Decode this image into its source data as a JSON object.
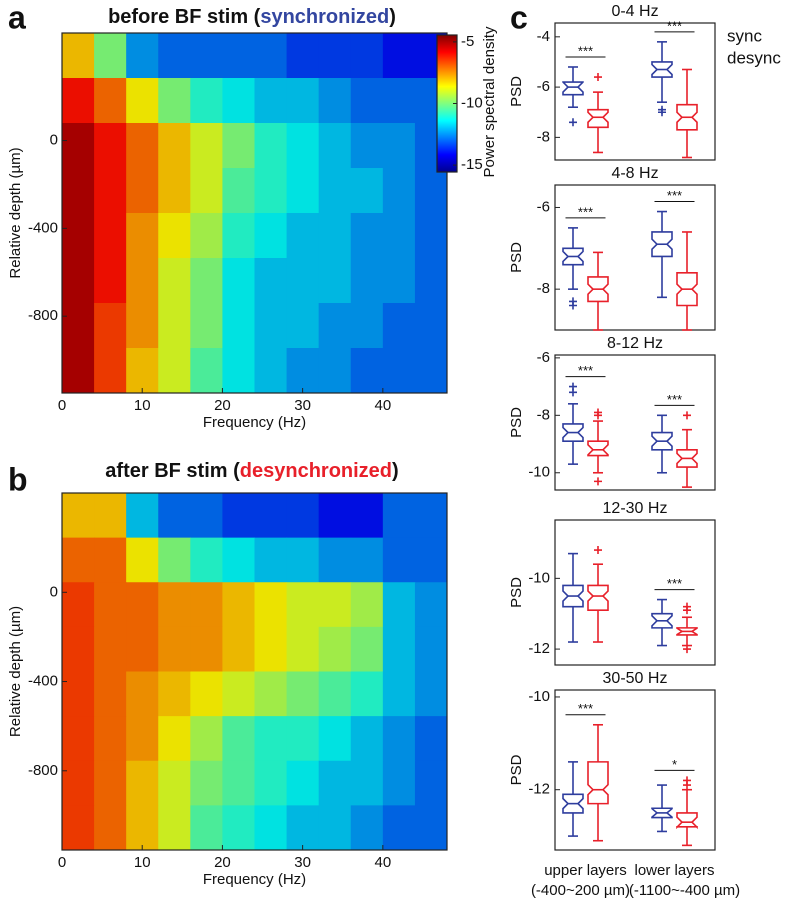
{
  "chart_data": [
    {
      "type": "heatmap",
      "label": "a",
      "title_prefix": "before BF stim (",
      "title_highlight": "synchronized",
      "title_suffix": ")",
      "highlight_color": "#3346a0",
      "xlabel": "Frequency (Hz)",
      "ylabel": "Relative depth (µm)",
      "xlim": [
        0,
        48
      ],
      "xticks": [
        0,
        10,
        20,
        30,
        40
      ],
      "ylim": [
        -1150,
        490
      ],
      "yticks": [
        0,
        -400,
        -800
      ],
      "x_edges": [
        0,
        4,
        8,
        12,
        16,
        20,
        24,
        28,
        32,
        36,
        40,
        44,
        48
      ],
      "y_edges": [
        490,
        285,
        80,
        -125,
        -330,
        -535,
        -740,
        -945,
        -1150
      ],
      "clim": [
        -15.56,
        -4.44
      ],
      "colorbar": {
        "label": "Power spectral density",
        "ticks": [
          -5,
          -10,
          -15
        ]
      },
      "z": [
        [
          -8,
          -10,
          -12.5,
          -13,
          -13,
          -13,
          -13,
          -13.5,
          -13.5,
          -13.5,
          -14,
          -14
        ],
        [
          -6,
          -7,
          -8.5,
          -10,
          -11,
          -11.5,
          -12,
          -12,
          -12.5,
          -13,
          -13,
          -13
        ],
        [
          -5,
          -6,
          -7,
          -8,
          -9,
          -10,
          -11,
          -11.5,
          -12,
          -12.5,
          -12.5,
          -13
        ],
        [
          -5,
          -6,
          -7,
          -8,
          -9,
          -10.5,
          -11,
          -11.5,
          -12,
          -12,
          -12.5,
          -13
        ],
        [
          -5,
          -6,
          -7.5,
          -8.5,
          -9.5,
          -11,
          -11.5,
          -12,
          -12,
          -12.5,
          -12.5,
          -13
        ],
        [
          -5,
          -6,
          -7.5,
          -9,
          -10,
          -11.5,
          -12,
          -12,
          -12,
          -12.5,
          -12.5,
          -13
        ],
        [
          -5,
          -6.5,
          -7.5,
          -9,
          -10,
          -11.5,
          -12,
          -12,
          -12.5,
          -12.5,
          -13,
          -13
        ],
        [
          -5,
          -6.5,
          -8,
          -9,
          -10.5,
          -11.5,
          -12,
          -12.5,
          -12.5,
          -13,
          -13,
          -13
        ]
      ]
    },
    {
      "type": "heatmap",
      "label": "b",
      "title_prefix": "after BF stim (",
      "title_highlight": "desynchronized",
      "title_suffix": ")",
      "highlight_color": "#e8202a",
      "xlabel": "Frequency (Hz)",
      "ylabel": "Relative depth (µm)",
      "xlim": [
        0,
        48
      ],
      "xticks": [
        0,
        10,
        20,
        30,
        40
      ],
      "ylim": [
        -1155,
        445
      ],
      "yticks": [
        0,
        -400,
        -800
      ],
      "x_edges": [
        0,
        4,
        8,
        12,
        16,
        20,
        24,
        28,
        32,
        36,
        40,
        44,
        48
      ],
      "y_edges": [
        445,
        245,
        45,
        -155,
        -355,
        -555,
        -755,
        -955,
        -1155
      ],
      "clim": [
        -15.56,
        -4.44
      ],
      "z": [
        [
          -8,
          -8,
          -12,
          -13,
          -13,
          -13.5,
          -13.5,
          -13.5,
          -14,
          -14,
          -13,
          -13
        ],
        [
          -7,
          -7,
          -8.5,
          -10,
          -11,
          -11.5,
          -12,
          -12,
          -12.5,
          -12.5,
          -13,
          -13
        ],
        [
          -6.5,
          -7,
          -7,
          -7.5,
          -7.5,
          -8,
          -8.5,
          -9,
          -9,
          -9.5,
          -12,
          -12.5
        ],
        [
          -6.5,
          -7,
          -7,
          -7.5,
          -7.5,
          -8,
          -8.5,
          -9,
          -9.5,
          -10,
          -12,
          -12.5
        ],
        [
          -6.5,
          -7,
          -7.5,
          -8,
          -8.5,
          -9,
          -9.5,
          -10,
          -10.5,
          -11,
          -12,
          -12.5
        ],
        [
          -6.5,
          -7,
          -7.5,
          -8.5,
          -9.5,
          -10.5,
          -11,
          -11,
          -11.5,
          -12,
          -12.5,
          -13
        ],
        [
          -6.5,
          -7,
          -8,
          -9,
          -10,
          -10.5,
          -11,
          -11.5,
          -12,
          -12,
          -12.5,
          -13
        ],
        [
          -6.5,
          -7,
          -8,
          -9,
          -10.5,
          -11,
          -11.5,
          -12,
          -12,
          -12.5,
          -13,
          -13
        ]
      ]
    },
    {
      "type": "box",
      "label": "c",
      "series": [
        {
          "name": "sync",
          "color": "#2e3d9e"
        },
        {
          "name": "desync",
          "color": "#e8202a"
        }
      ],
      "categories": [
        "upper layers",
        "lower layers"
      ],
      "category_sublabels": [
        "(-400~200 µm)",
        "(-1100~-400 µm)"
      ],
      "subplots": [
        {
          "title": "0-4 Hz",
          "ylabel": "PSD",
          "ylim": [
            -8.9,
            -3.45
          ],
          "yticks": [
            -8,
            -6,
            -4
          ],
          "groups": [
            {
              "significance": "***",
              "boxes": [
                {
                  "whislo": -6.8,
                  "q1": -6.3,
                  "med": -6.0,
                  "q3": -5.8,
                  "whishi": -5.2,
                  "fliers": [
                    -7.4
                  ]
                },
                {
                  "whislo": -8.6,
                  "q1": -7.6,
                  "med": -7.2,
                  "q3": -6.9,
                  "whishi": -6.2,
                  "fliers": [
                    -5.6
                  ]
                }
              ]
            },
            {
              "significance": "***",
              "boxes": [
                {
                  "whislo": -6.6,
                  "q1": -5.6,
                  "med": -5.3,
                  "q3": -5.0,
                  "whishi": -4.2,
                  "fliers": [
                    -6.9,
                    -7.0
                  ]
                },
                {
                  "whislo": -8.8,
                  "q1": -7.7,
                  "med": -7.2,
                  "q3": -6.7,
                  "whishi": -5.3,
                  "fliers": []
                }
              ]
            }
          ]
        },
        {
          "title": "4-8 Hz",
          "ylabel": "PSD",
          "ylim": [
            -9,
            -5.45
          ],
          "yticks": [
            -8,
            -6
          ],
          "groups": [
            {
              "significance": "***",
              "boxes": [
                {
                  "whislo": -8.0,
                  "q1": -7.4,
                  "med": -7.2,
                  "q3": -7.0,
                  "whishi": -6.5,
                  "fliers": [
                    -8.3,
                    -8.4
                  ]
                },
                {
                  "whislo": -9.0,
                  "q1": -8.3,
                  "med": -8.0,
                  "q3": -7.7,
                  "whishi": -7.1,
                  "fliers": []
                }
              ]
            },
            {
              "significance": "***",
              "boxes": [
                {
                  "whislo": -8.2,
                  "q1": -7.2,
                  "med": -6.9,
                  "q3": -6.6,
                  "whishi": -6.1,
                  "fliers": []
                },
                {
                  "whislo": -9.0,
                  "q1": -8.4,
                  "med": -8.0,
                  "q3": -7.6,
                  "whishi": -6.6,
                  "fliers": []
                }
              ]
            }
          ]
        },
        {
          "title": "8-12 Hz",
          "ylabel": "PSD",
          "ylim": [
            -10.6,
            -5.9
          ],
          "yticks": [
            -10,
            -8,
            -6
          ],
          "groups": [
            {
              "significance": "***",
              "boxes": [
                {
                  "whislo": -9.7,
                  "q1": -8.9,
                  "med": -8.6,
                  "q3": -8.3,
                  "whishi": -7.6,
                  "fliers": [
                    -7.2,
                    -7.0
                  ]
                },
                {
                  "whislo": -10.0,
                  "q1": -9.4,
                  "med": -9.2,
                  "q3": -8.9,
                  "whishi": -8.2,
                  "fliers": [
                    -7.9,
                    -8.0,
                    -10.3
                  ]
                }
              ]
            },
            {
              "significance": "***",
              "boxes": [
                {
                  "whislo": -10.0,
                  "q1": -9.2,
                  "med": -8.9,
                  "q3": -8.6,
                  "whishi": -8.0,
                  "fliers": []
                },
                {
                  "whislo": -10.5,
                  "q1": -9.8,
                  "med": -9.5,
                  "q3": -9.2,
                  "whishi": -8.5,
                  "fliers": [
                    -8.0
                  ]
                }
              ]
            }
          ]
        },
        {
          "title": "12-30 Hz",
          "ylabel": "PSD",
          "ylim": [
            -12.45,
            -8.35
          ],
          "yticks": [
            -12,
            -10
          ],
          "groups": [
            {
              "significance": null,
              "boxes": [
                {
                  "whislo": -11.8,
                  "q1": -10.8,
                  "med": -10.5,
                  "q3": -10.2,
                  "whishi": -9.3,
                  "fliers": []
                },
                {
                  "whislo": -11.8,
                  "q1": -10.9,
                  "med": -10.5,
                  "q3": -10.2,
                  "whishi": -9.6,
                  "fliers": [
                    -9.2
                  ]
                }
              ]
            },
            {
              "significance": "***",
              "boxes": [
                {
                  "whislo": -11.9,
                  "q1": -11.4,
                  "med": -11.2,
                  "q3": -11.0,
                  "whishi": -10.6,
                  "fliers": []
                },
                {
                  "whislo": -11.9,
                  "q1": -11.6,
                  "med": -11.5,
                  "q3": -11.4,
                  "whishi": -11.1,
                  "fliers": [
                    -10.8,
                    -10.9,
                    -12.0
                  ]
                }
              ]
            }
          ]
        },
        {
          "title": "30-50 Hz",
          "ylabel": "PSD",
          "ylim": [
            -13.3,
            -9.85
          ],
          "yticks": [
            -12,
            -10
          ],
          "groups": [
            {
              "significance": "***",
              "boxes": [
                {
                  "whislo": -13.0,
                  "q1": -12.5,
                  "med": -12.3,
                  "q3": -12.1,
                  "whishi": -11.4,
                  "fliers": []
                },
                {
                  "whislo": -13.1,
                  "q1": -12.3,
                  "med": -12.0,
                  "q3": -11.4,
                  "whishi": -10.6,
                  "fliers": []
                }
              ]
            },
            {
              "significance": "*",
              "boxes": [
                {
                  "whislo": -12.9,
                  "q1": -12.6,
                  "med": -12.5,
                  "q3": -12.4,
                  "whishi": -11.9,
                  "fliers": []
                },
                {
                  "whislo": -13.2,
                  "q1": -12.8,
                  "med": -12.7,
                  "q3": -12.5,
                  "whishi": -12.0,
                  "fliers": [
                    -11.9,
                    -11.8
                  ]
                }
              ]
            }
          ]
        }
      ]
    }
  ]
}
